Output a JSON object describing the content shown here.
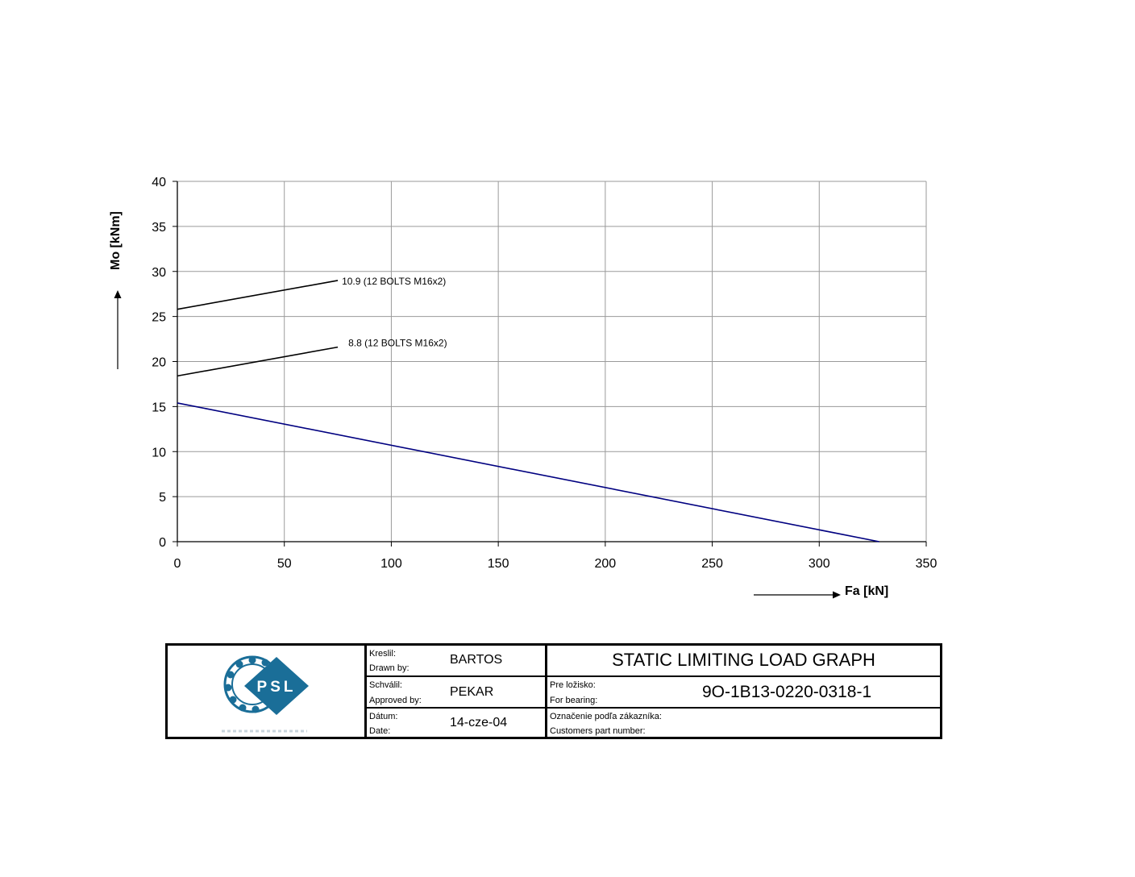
{
  "chart_data": {
    "type": "line",
    "xlabel": "Fa [kN]",
    "ylabel": "Mo [kNm]",
    "xlim": [
      0,
      350
    ],
    "ylim": [
      0,
      40
    ],
    "x_ticks": [
      "0",
      "50",
      "100",
      "150",
      "200",
      "250",
      "300",
      "350"
    ],
    "y_ticks": [
      "0",
      "5",
      "10",
      "15",
      "20",
      "25",
      "30",
      "35",
      "40"
    ],
    "grid": true,
    "series": [
      {
        "name": "10.9 (12 BOLTS M16x2)",
        "x": [
          0,
          75
        ],
        "y": [
          25.8,
          29.0
        ],
        "color": "#000000"
      },
      {
        "name": "8.8 (12 BOLTS M16x2)",
        "x": [
          0,
          75
        ],
        "y": [
          18.4,
          21.6
        ],
        "color": "#000000"
      },
      {
        "name": "",
        "x": [
          0,
          328
        ],
        "y": [
          15.4,
          0
        ],
        "color": "#000080"
      }
    ]
  },
  "title_block": {
    "logo_text": "PSL",
    "drawn_by_label_sk": "Kreslil:",
    "drawn_by_label_en": "Drawn by:",
    "drawn_by_value": "BARTOS",
    "approved_by_label_sk": "Schválil:",
    "approved_by_label_en": "Approved by:",
    "approved_by_value": "PEKAR",
    "date_label_sk": "Dátum:",
    "date_label_en": "Date:",
    "date_value": "14-cze-04",
    "graph_title": "STATIC LIMITING LOAD GRAPH",
    "for_bearing_label_sk": "Pre ložisko:",
    "for_bearing_label_en": "For bearing:",
    "for_bearing_value": "9O-1B13-0220-0318-1",
    "customer_label_sk": "Označenie podľa zákazníka:",
    "customer_label_en": "Customers part number:",
    "customer_value": ""
  }
}
